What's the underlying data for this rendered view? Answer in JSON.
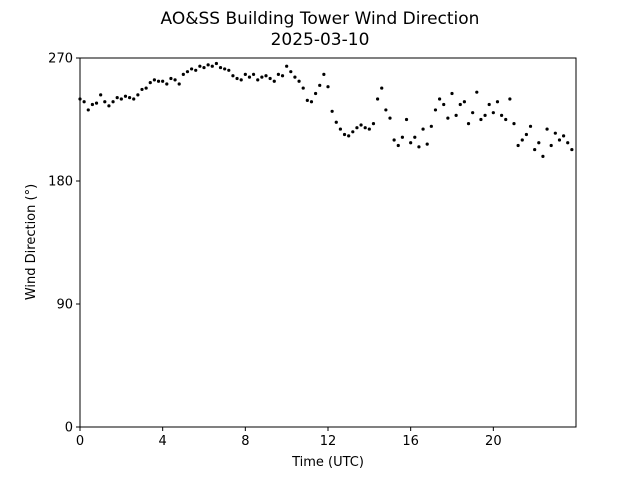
{
  "chart_data": {
    "type": "scatter",
    "title": "AO&SS Building Tower Wind Direction",
    "subtitle": "2025-03-10",
    "xlabel": "Time (UTC)",
    "ylabel": "Wind Direction (°)",
    "xlim": [
      0,
      24
    ],
    "ylim": [
      0,
      270
    ],
    "x_ticks": [
      0,
      4,
      8,
      12,
      16,
      20
    ],
    "y_ticks": [
      0,
      90,
      180,
      270
    ],
    "grid": false,
    "legend": "none",
    "marker_color": "#000000",
    "series": [
      {
        "x": [
          0.0,
          0.2,
          0.4,
          0.6,
          0.8,
          1.0,
          1.2,
          1.4,
          1.6,
          1.8,
          2.0,
          2.2,
          2.4,
          2.6,
          2.8,
          3.0,
          3.2,
          3.4,
          3.6,
          3.8,
          4.0,
          4.2,
          4.4,
          4.6,
          4.8,
          5.0,
          5.2,
          5.4,
          5.6,
          5.8,
          6.0,
          6.2,
          6.4,
          6.6,
          6.8,
          7.0,
          7.2,
          7.4,
          7.6,
          7.8,
          8.0,
          8.2,
          8.4,
          8.6,
          8.8,
          9.0,
          9.2,
          9.4,
          9.6,
          9.8,
          10.0,
          10.2,
          10.4,
          10.6,
          10.8,
          11.0,
          11.2,
          11.4,
          11.6,
          11.8,
          12.0,
          12.2,
          12.4,
          12.6,
          12.8,
          13.0,
          13.2,
          13.4,
          13.6,
          13.8,
          14.0,
          14.2,
          14.4,
          14.6,
          14.8,
          15.0,
          15.2,
          15.4,
          15.6,
          15.8,
          16.0,
          16.2,
          16.4,
          16.6,
          16.8,
          17.0,
          17.2,
          17.4,
          17.6,
          17.8,
          18.0,
          18.2,
          18.4,
          18.6,
          18.8,
          19.0,
          19.2,
          19.4,
          19.6,
          19.8,
          20.0,
          20.2,
          20.4,
          20.6,
          20.8,
          21.0,
          21.2,
          21.4,
          21.6,
          21.8,
          22.0,
          22.2,
          22.4,
          22.6,
          22.8,
          23.0,
          23.2,
          23.4,
          23.6,
          23.8
        ],
        "y": [
          240,
          238,
          232,
          236,
          237,
          243,
          238,
          235,
          238,
          241,
          240,
          242,
          241,
          240,
          243,
          247,
          248,
          252,
          254,
          253,
          253,
          251,
          255,
          254,
          251,
          258,
          260,
          262,
          261,
          264,
          263,
          265,
          264,
          266,
          263,
          262,
          261,
          257,
          255,
          254,
          258,
          256,
          258,
          254,
          256,
          257,
          255,
          253,
          258,
          257,
          264,
          260,
          256,
          253,
          248,
          239,
          238,
          244,
          250,
          258,
          249,
          231,
          223,
          218,
          214,
          213,
          216,
          219,
          221,
          219,
          218,
          222,
          240,
          248,
          232,
          226,
          210,
          206,
          212,
          225,
          208,
          212,
          205,
          218,
          207,
          220,
          232,
          240,
          236,
          226,
          244,
          228,
          236,
          238,
          222,
          230,
          245,
          225,
          228,
          236,
          230,
          238,
          228,
          225,
          240,
          222,
          206,
          210,
          214,
          220,
          203,
          208,
          198,
          218,
          206,
          215,
          210,
          213,
          208,
          203
        ]
      }
    ]
  }
}
